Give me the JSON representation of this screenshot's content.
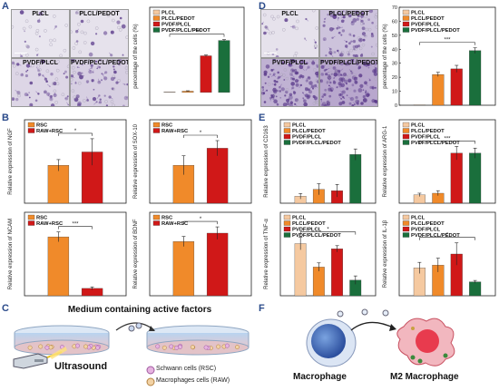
{
  "panels": {
    "A": "A",
    "B": "B",
    "C": "C",
    "D": "D",
    "E": "E",
    "F": "F"
  },
  "micro_A": [
    "PLCL",
    "PLCL/PEDOT",
    "PVDF/PLCL",
    "PVDF/PLCL/PEDOT"
  ],
  "micro_D": [
    "PLCL",
    "PLCL/PEDOT",
    "PVDF/PLCL",
    "PVDF/PLCL/PEDOT"
  ],
  "panel_c": {
    "title": "Medium containing active factors",
    "ultrasound": "Ultrasound",
    "legend_schwann": "Schwann cells (RSC)",
    "legend_macro": "Macrophages cells (RAW)"
  },
  "panel_f": {
    "macrophage": "Macrophage",
    "m2": "M2 Macrophage"
  },
  "chart_data": [
    {
      "id": "A",
      "type": "bar",
      "ylabel": "percentage of the cells (%)",
      "categories": [
        "PLCL",
        "PLCL/PEDOT",
        "PVDF/PLCL",
        "PVDF/PLCL/PEDOT"
      ],
      "values": [
        0,
        0.3,
        8.6,
        12.2
      ],
      "errors": [
        0,
        0.1,
        0.2,
        0.2
      ],
      "colors": [
        "#f5c9a0",
        "#f08a2a",
        "#d01818",
        "#1a6f3c"
      ],
      "ylim": [
        -3,
        20
      ],
      "yticks": [],
      "sig": "***",
      "legend": [
        "PLCL",
        "PLCL/PEDOT",
        "PVDF/PLCL",
        "PVDF/PLCL/PEDOT"
      ]
    },
    {
      "id": "D",
      "type": "bar",
      "ylabel": "percentage of the cells (%)",
      "categories": [
        "PLCL",
        "PLCL/PEDOT",
        "PVDF/PLCL",
        "PVDF/PLCL/PEDOT"
      ],
      "values": [
        0,
        22,
        26,
        39
      ],
      "errors": [
        0,
        1.5,
        2.5,
        2
      ],
      "colors": [
        "#f5c9a0",
        "#f08a2a",
        "#d01818",
        "#1a6f3c"
      ],
      "ylim": [
        0,
        70
      ],
      "yticks": [
        0,
        10,
        20,
        30,
        40,
        50,
        60,
        70
      ],
      "sig": "***",
      "legend": [
        "PLCL",
        "PLCL/PEDOT",
        "PVDF/PLCL",
        "PVDF/PLCL/PEDOT"
      ]
    },
    {
      "id": "B1",
      "type": "bar",
      "ylabel": "Relative expression of NGF",
      "categories": [
        "RSC",
        "RAW+RSC"
      ],
      "values": [
        1.0,
        1.35
      ],
      "errors": [
        0.15,
        0.35
      ],
      "colors": [
        "#f08a2a",
        "#d01818"
      ],
      "ylim": [
        0,
        2.2
      ],
      "sig": "*",
      "legend": [
        "RSC",
        "RAW+RSC"
      ]
    },
    {
      "id": "B2",
      "type": "bar",
      "ylabel": "Relative expression of SOX-10",
      "categories": [
        "RSC",
        "RAW+RSC"
      ],
      "values": [
        1.0,
        1.45
      ],
      "errors": [
        0.25,
        0.2
      ],
      "colors": [
        "#f08a2a",
        "#d01818"
      ],
      "ylim": [
        0,
        2.2
      ],
      "sig": "*",
      "legend": [
        "RSC",
        "RAW+RSC"
      ]
    },
    {
      "id": "B3",
      "type": "bar",
      "ylabel": "Relative expression of NCAM",
      "categories": [
        "RSC",
        "RAW+RSC"
      ],
      "values": [
        1.2,
        0.15
      ],
      "errors": [
        0.1,
        0.03
      ],
      "colors": [
        "#f08a2a",
        "#d01818"
      ],
      "ylim": [
        0,
        1.7
      ],
      "sig": "***",
      "legend": [
        "RSC",
        "RAW+RSC"
      ]
    },
    {
      "id": "B4",
      "type": "bar",
      "ylabel": "Relative expression of BDNF",
      "categories": [
        "RSC",
        "RAW+RSC"
      ],
      "values": [
        1.3,
        1.5
      ],
      "errors": [
        0.12,
        0.15
      ],
      "colors": [
        "#f08a2a",
        "#d01818"
      ],
      "ylim": [
        0,
        2.0
      ],
      "sig": "*",
      "legend": [
        "RSC",
        "RAW+RSC"
      ]
    },
    {
      "id": "E1",
      "type": "bar",
      "ylabel": "Relative expression of CD163",
      "categories": [
        "PLCL",
        "PLCL/PEDOT",
        "PVDF/PLCL",
        "PVDF/PLCL/PEDOT"
      ],
      "values": [
        1.0,
        2.0,
        1.8,
        7.0
      ],
      "errors": [
        0.4,
        0.8,
        0.9,
        0.8
      ],
      "colors": [
        "#f5c9a0",
        "#f08a2a",
        "#d01818",
        "#1a6f3c"
      ],
      "ylim": [
        0,
        12
      ],
      "sig": "",
      "legend": [
        "PLCL",
        "PLCL/PEDOT",
        "PVDF/PLCL",
        "PVDF/PLCL/PEDOT"
      ]
    },
    {
      "id": "E2",
      "type": "bar",
      "ylabel": "Relative expression of ARG-1",
      "categories": [
        "PLCL",
        "PLCL/PEDOT",
        "PVDF/PLCL",
        "PVDF/PLCL/PEDOT"
      ],
      "values": [
        1.0,
        1.2,
        6.0,
        6.0
      ],
      "errors": [
        0.2,
        0.3,
        0.8,
        0.6
      ],
      "colors": [
        "#f5c9a0",
        "#f08a2a",
        "#d01818",
        "#1a6f3c"
      ],
      "ylim": [
        0,
        10
      ],
      "sig": "***",
      "legend": [
        "PLCL",
        "PLCL/PEDOT",
        "PVDF/PLCL",
        "PVDF/PLCL/PEDOT"
      ]
    },
    {
      "id": "E3",
      "type": "bar",
      "ylabel": "Relative expression of TNF-α",
      "categories": [
        "PLCL",
        "PLCL/PEDOT",
        "PVDF/PLCL",
        "PVDF/PLCL/PEDOT"
      ],
      "values": [
        1.0,
        0.55,
        0.9,
        0.3
      ],
      "errors": [
        0.12,
        0.08,
        0.06,
        0.08
      ],
      "colors": [
        "#f5c9a0",
        "#f08a2a",
        "#d01818",
        "#1a6f3c"
      ],
      "ylim": [
        0,
        1.6
      ],
      "sig": "*",
      "legend": [
        "PLCL",
        "PLCL/PEDOT",
        "PVDF/PLCL",
        "PVDF/PLCL/PEDOT"
      ]
    },
    {
      "id": "E4",
      "type": "bar",
      "ylabel": "Relative expression of IL-1β",
      "categories": [
        "PLCL",
        "PLCL/PEDOT",
        "PVDF/PLCL",
        "PVDF/PLCL/PEDOT"
      ],
      "values": [
        1.0,
        1.1,
        1.5,
        0.5
      ],
      "errors": [
        0.2,
        0.25,
        0.4,
        0.05
      ],
      "colors": [
        "#f5c9a0",
        "#f08a2a",
        "#d01818",
        "#1a6f3c"
      ],
      "ylim": [
        0,
        3.0
      ],
      "sig": "*",
      "legend": [
        "PLCL",
        "PLCL/PEDOT",
        "PVDF/PLCL",
        "PVDF/PLCL/PEDOT"
      ]
    }
  ]
}
